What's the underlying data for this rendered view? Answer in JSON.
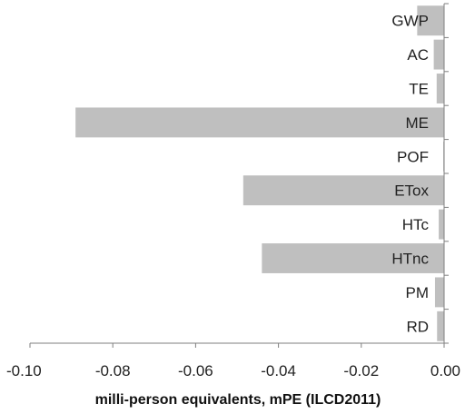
{
  "chart_data": {
    "type": "bar",
    "orientation": "horizontal",
    "categories": [
      "GWP",
      "AC",
      "TE",
      "ME",
      "POF",
      "ETox",
      "HTc",
      "HTnc",
      "PM",
      "RD"
    ],
    "values": [
      -0.0065,
      -0.0025,
      -0.0018,
      -0.089,
      -0.0002,
      -0.0485,
      -0.0013,
      -0.044,
      -0.0022,
      -0.0017
    ],
    "xlim": [
      -0.1,
      0.0
    ],
    "xticks": [
      -0.1,
      -0.08,
      -0.06,
      -0.04,
      -0.02,
      0.0
    ],
    "xtick_labels": [
      "-0.10",
      "-0.08",
      "-0.06",
      "-0.04",
      "-0.02",
      "0.00"
    ],
    "xlabel": "milli-person equivalents, mPE (ILCD2011)",
    "ylabel": "",
    "title": "",
    "grid": false,
    "legend": "none",
    "bar_color": "#bfbfbf",
    "axis_color": "#7f7f7f"
  }
}
